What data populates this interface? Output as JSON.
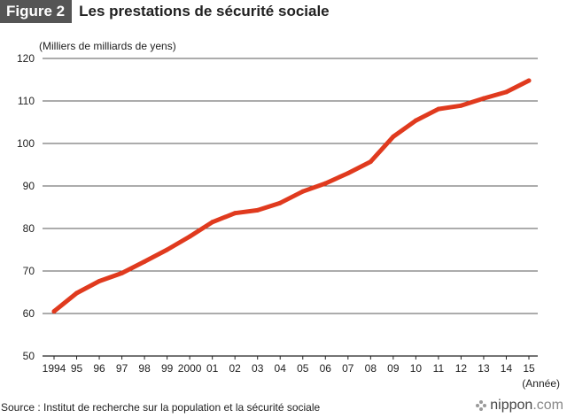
{
  "header": {
    "figure_label": "Figure 2",
    "title": "Les prestations de sécurité sociale"
  },
  "footer": {
    "source": "Source : Institut de recherche sur la population et la sécurité sociale",
    "brand_name": "nippon",
    "brand_domain": ".com"
  },
  "colors": {
    "line": "#e03a1e",
    "badge": "#555555",
    "grid": "#222222"
  },
  "chart_data": {
    "type": "line",
    "title": "Les prestations de sécurité sociale",
    "ylabel": "(Milliers de milliards de yens)",
    "xlabel": "(Année)",
    "ylim": [
      50,
      120
    ],
    "yticks": [
      50,
      60,
      70,
      80,
      90,
      100,
      110,
      120
    ],
    "grid": true,
    "categories": [
      "1994",
      "95",
      "96",
      "97",
      "98",
      "99",
      "2000",
      "01",
      "02",
      "03",
      "04",
      "05",
      "06",
      "07",
      "08",
      "09",
      "10",
      "11",
      "12",
      "13",
      "14",
      "15"
    ],
    "series": [
      {
        "name": "Prestations de sécurité sociale",
        "values": [
          60.5,
          64.8,
          67.6,
          69.5,
          72.2,
          75.0,
          78.1,
          81.5,
          83.6,
          84.3,
          86.0,
          88.7,
          90.6,
          93.0,
          95.7,
          101.6,
          105.4,
          108.1,
          108.9,
          110.6,
          112.1,
          114.8
        ]
      }
    ]
  }
}
